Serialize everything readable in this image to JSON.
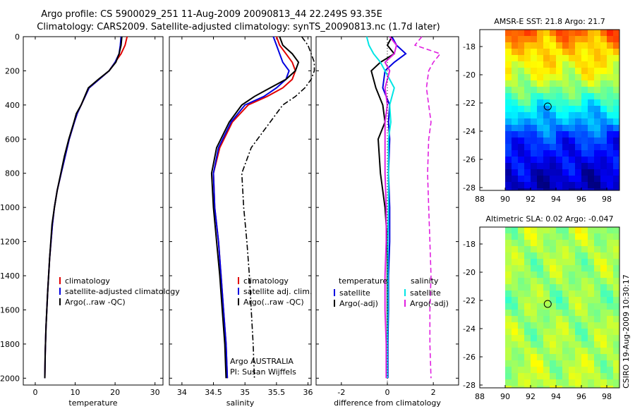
{
  "title": {
    "line1": "Argo profile: CS 5900029_251 11-Aug-2009 20090813_44 22.249S 93.35E",
    "line2": "Climatology: CARS2009. Satellite-adjusted climatology: synTS_20090813.nc (1.7d later)"
  },
  "side_text": "CSIRO 19-Aug-2009 10:30:17",
  "colors": {
    "climatology": "#e00000",
    "satellite": "#0000e0",
    "argo": "#000000",
    "salinity_satellite": "#00e5e5",
    "salinity_argo": "#e020e0"
  },
  "chart_data": [
    {
      "id": "temperature",
      "type": "line",
      "xlabel": "temperature",
      "x_ticks": [
        "0",
        "10",
        "20",
        "30"
      ],
      "y_ticks": [
        "0",
        "200",
        "400",
        "600",
        "800",
        "1000",
        "1200",
        "1400",
        "1600",
        "1800",
        "2000"
      ],
      "xlim": [
        -3,
        32
      ],
      "ylim": [
        2040,
        0
      ],
      "legend": [
        "climatology",
        "satellite-adjusted climatology",
        "Argo(..raw -QC)"
      ],
      "legend_placement": "lower-right",
      "series": [
        {
          "name": "climatology",
          "color": "#e00000",
          "style": "solid",
          "x": [
            23,
            22.5,
            21.5,
            20,
            18.5,
            16,
            13.5,
            11.5,
            10.5,
            9.8,
            8.5,
            7.5,
            6.5,
            5.5,
            4.8,
            4.3,
            3.6,
            3.1,
            2.7,
            2.5,
            2.4
          ],
          "y": [
            0,
            50,
            100,
            150,
            200,
            250,
            300,
            400,
            450,
            500,
            600,
            700,
            800,
            900,
            1000,
            1100,
            1300,
            1500,
            1700,
            1850,
            2000
          ]
        },
        {
          "name": "satellite-adjusted climatology",
          "color": "#0000e0",
          "style": "solid",
          "x": [
            21.5,
            21.3,
            21,
            20,
            18.5,
            16,
            13.5,
            11.5,
            10.5,
            9.8,
            8.5,
            7.5,
            6.5,
            5.5,
            4.8,
            4.3,
            3.6,
            3.1,
            2.7,
            2.5,
            2.4
          ],
          "y": [
            0,
            50,
            100,
            150,
            200,
            250,
            300,
            400,
            450,
            500,
            600,
            700,
            800,
            900,
            1000,
            1100,
            1300,
            1500,
            1700,
            1850,
            2000
          ]
        },
        {
          "name": "Argo(..raw -QC)",
          "color": "#000000",
          "style": "solid",
          "x": [
            21.7,
            21.5,
            21,
            20.2,
            18.5,
            15.8,
            13.3,
            11.5,
            10.3,
            9.7,
            8.4,
            7.3,
            6.4,
            5.5,
            4.8,
            4.2,
            3.6,
            3.1,
            2.7,
            2.5,
            2.4
          ],
          "y": [
            0,
            50,
            100,
            150,
            200,
            250,
            300,
            400,
            450,
            500,
            600,
            700,
            800,
            900,
            1000,
            1100,
            1300,
            1500,
            1700,
            1850,
            2000
          ]
        }
      ]
    },
    {
      "id": "salinity",
      "type": "line",
      "xlabel": "salinity",
      "x_ticks": [
        "34",
        "34.5",
        "35",
        "35.5",
        "36"
      ],
      "xlim": [
        33.8,
        36.05
      ],
      "ylim": [
        2040,
        0
      ],
      "legend": [
        "climatology",
        "satellite adj. clim.",
        "Argo(..raw -QC)"
      ],
      "legend_placement": "lower-right",
      "annotation": [
        "Argo AUSTRALIA",
        "PI: Susan Wijffels"
      ],
      "series": [
        {
          "name": "climatology",
          "color": "#e00000",
          "style": "solid",
          "x": [
            35.5,
            35.55,
            35.65,
            35.75,
            35.8,
            35.75,
            35.6,
            35.35,
            35.05,
            34.8,
            34.6,
            34.5,
            34.52,
            34.58,
            34.62,
            34.66,
            34.7,
            34.72
          ],
          "y": [
            0,
            50,
            100,
            150,
            200,
            250,
            300,
            350,
            400,
            500,
            650,
            800,
            1000,
            1200,
            1400,
            1600,
            1800,
            2000
          ]
        },
        {
          "name": "satellite adj. clim.",
          "color": "#0000e0",
          "style": "solid",
          "x": [
            35.45,
            35.5,
            35.55,
            35.6,
            35.7,
            35.65,
            35.5,
            35.3,
            35.0,
            34.78,
            34.58,
            34.5,
            34.52,
            34.58,
            34.62,
            34.66,
            34.7,
            34.72
          ],
          "y": [
            0,
            50,
            100,
            150,
            200,
            250,
            300,
            350,
            400,
            500,
            650,
            800,
            1000,
            1200,
            1400,
            1600,
            1800,
            2000
          ]
        },
        {
          "name": "Argo(..raw -QC)",
          "color": "#000000",
          "style": "solid",
          "x": [
            35.55,
            35.6,
            35.75,
            35.85,
            35.8,
            35.65,
            35.4,
            35.15,
            34.95,
            34.75,
            34.55,
            34.47,
            34.5,
            34.55,
            34.6,
            34.64,
            34.68,
            34.7
          ],
          "y": [
            0,
            50,
            100,
            150,
            200,
            250,
            300,
            350,
            400,
            500,
            650,
            800,
            1000,
            1200,
            1400,
            1600,
            1800,
            2000
          ]
        },
        {
          "name": "Argo (raw)",
          "color": "#000000",
          "style": "dashdot",
          "x": [
            35.9,
            36.0,
            36.05,
            36.1,
            36.1,
            36.05,
            35.95,
            35.8,
            35.6,
            35.4,
            35.1,
            34.95,
            34.98,
            35.03,
            35.07,
            35.1,
            35.13,
            35.15
          ],
          "y": [
            0,
            50,
            100,
            150,
            200,
            250,
            300,
            350,
            400,
            500,
            650,
            800,
            1000,
            1200,
            1400,
            1600,
            1800,
            2000
          ]
        }
      ]
    },
    {
      "id": "difference",
      "type": "line",
      "xlabel": "difference from climatology",
      "x_ticks": [
        "-2",
        "0",
        "2"
      ],
      "xlim": [
        -3.1,
        3.1
      ],
      "ylim": [
        2040,
        0
      ],
      "legend_temperature": {
        "header": "temperature",
        "items": [
          "satellite",
          "Argo(-adj)"
        ]
      },
      "legend_salinity": {
        "header": "salinity",
        "items": [
          "satellite",
          "Argo(-adj)"
        ]
      },
      "series": [
        {
          "name": "temperature satellite",
          "color": "#0000e0",
          "style": "solid",
          "x": [
            0.2,
            0.4,
            0.8,
            0.3,
            -0.1,
            -0.2,
            0.1,
            0.05,
            0.1,
            0.05,
            0.1,
            0.1,
            0.05,
            0.05,
            0.02,
            0.02
          ],
          "y": [
            0,
            50,
            100,
            150,
            200,
            300,
            400,
            500,
            600,
            800,
            1000,
            1200,
            1400,
            1600,
            1800,
            2000
          ]
        },
        {
          "name": "temperature Argo(-adj)",
          "color": "#000000",
          "style": "solid",
          "x": [
            0.2,
            0.0,
            0.3,
            -0.3,
            -0.7,
            -0.5,
            -0.2,
            -0.1,
            -0.4,
            -0.3,
            -0.1,
            0.0,
            0.0,
            0.0,
            0.0,
            0.0
          ],
          "y": [
            0,
            50,
            100,
            150,
            200,
            300,
            400,
            500,
            600,
            800,
            1000,
            1200,
            1400,
            1600,
            1800,
            2000
          ]
        },
        {
          "name": "salinity satellite",
          "color": "#00e5e5",
          "style": "solid",
          "x": [
            -0.9,
            -0.8,
            -0.6,
            -0.3,
            -0.1,
            0.3,
            0.1,
            0.15,
            0.05,
            0.05,
            0.05,
            0.02,
            0.02,
            0.02,
            0.0,
            0.0
          ],
          "y": [
            0,
            50,
            100,
            150,
            200,
            300,
            400,
            500,
            600,
            800,
            1000,
            1200,
            1400,
            1600,
            1800,
            2000
          ]
        },
        {
          "name": "salinity Argo(-adj)",
          "color": "#e020e0",
          "style": "solid",
          "x": [
            0.1,
            0.4,
            0.3,
            -0.1,
            0.1,
            -0.1,
            0.0,
            -0.1,
            -0.1,
            -0.1,
            -0.05,
            -0.05,
            -0.1,
            -0.1,
            -0.05,
            -0.05
          ],
          "y": [
            0,
            50,
            100,
            150,
            200,
            300,
            400,
            500,
            600,
            800,
            1000,
            1200,
            1400,
            1600,
            1800,
            2000
          ]
        },
        {
          "name": "salinity Argo (raw)",
          "color": "#e020e0",
          "style": "dashed",
          "x": [
            1.5,
            1.2,
            2.3,
            2.0,
            1.8,
            1.7,
            1.8,
            1.9,
            1.8,
            1.75,
            1.8,
            1.85,
            1.9,
            1.85,
            1.85,
            1.9
          ],
          "y": [
            0,
            50,
            100,
            150,
            200,
            300,
            400,
            500,
            600,
            800,
            1000,
            1200,
            1400,
            1600,
            1800,
            2000
          ]
        }
      ]
    },
    {
      "id": "sst_map",
      "type": "heatmap",
      "title": "AMSR-E SST: 21.8 Argo: 21.7",
      "x_ticks": [
        "88",
        "90",
        "92",
        "94",
        "96",
        "98"
      ],
      "y_ticks": [
        "-18",
        "-20",
        "-22",
        "-24",
        "-26",
        "-28"
      ],
      "xlim": [
        88,
        99
      ],
      "ylim": [
        -28.2,
        -16.8
      ],
      "marker": {
        "lon": 93.35,
        "lat": -22.249
      },
      "colormap": "jet",
      "gradient": [
        [
          -16.8,
          0.78
        ],
        [
          -18,
          0.68
        ],
        [
          -20,
          0.6
        ],
        [
          -21.5,
          0.46
        ],
        [
          -22.5,
          0.35
        ],
        [
          -23.5,
          0.28
        ],
        [
          -24.5,
          0.18
        ],
        [
          -26,
          0.12
        ],
        [
          -27,
          0.08
        ],
        [
          -28.2,
          0.05
        ]
      ]
    },
    {
      "id": "sla_map",
      "type": "heatmap",
      "title": "Altimetric SLA: 0.02 Argo: -0.047",
      "x_ticks": [
        "88",
        "90",
        "92",
        "94",
        "96",
        "98"
      ],
      "y_ticks": [
        "-18",
        "-20",
        "-22",
        "-24",
        "-26",
        "-28"
      ],
      "xlim": [
        88,
        99
      ],
      "ylim": [
        -28.2,
        -16.8
      ],
      "marker": {
        "lon": 93.35,
        "lat": -22.249
      },
      "colormap": "jet",
      "gradient": [
        [
          -16.8,
          0.55
        ],
        [
          -22,
          0.52
        ],
        [
          -28.2,
          0.56
        ]
      ]
    }
  ]
}
